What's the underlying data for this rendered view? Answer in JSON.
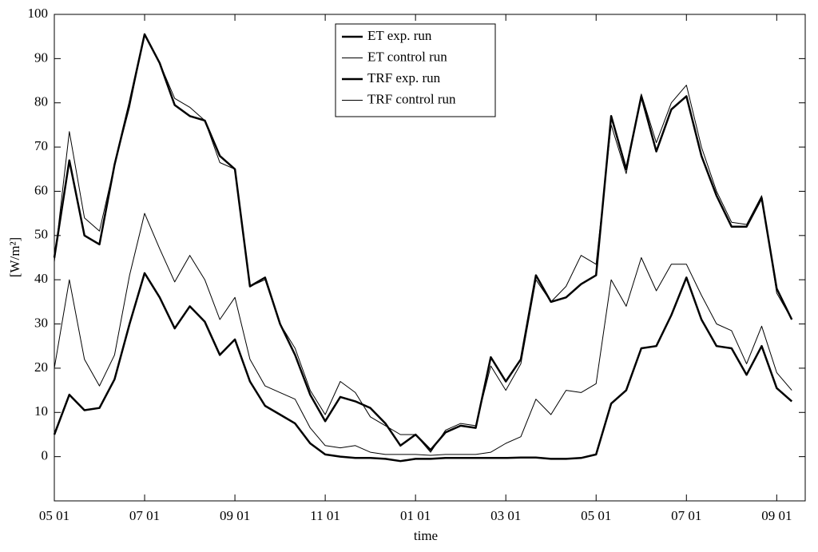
{
  "chart_data": {
    "type": "line",
    "x_label": "time",
    "y_label": "[W/m²]",
    "categories": [
      "05 01",
      null,
      null,
      null,
      null,
      null,
      "07 01",
      null,
      null,
      null,
      null,
      null,
      "09 01",
      null,
      null,
      null,
      null,
      null,
      "11 01",
      null,
      null,
      null,
      null,
      null,
      "01 01",
      null,
      null,
      null,
      null,
      null,
      "03 01",
      null,
      null,
      null,
      null,
      null,
      "05 01",
      null,
      null,
      null,
      null,
      null,
      "07 01",
      null,
      null,
      null,
      null,
      null,
      "09 01",
      null
    ],
    "series": [
      {
        "name": "ET exp. run",
        "color": "#000000",
        "linewidth": 2.5,
        "values": [
          45,
          67,
          50,
          48,
          66,
          80,
          95.5,
          89,
          79.5,
          77,
          76,
          68,
          65,
          38.5,
          40.5,
          30,
          23,
          14,
          8,
          13.5,
          12.5,
          11,
          7.5,
          2.5,
          5,
          1.5,
          5.5,
          7,
          6.5,
          22.5,
          17,
          22,
          41,
          35,
          36,
          39,
          41,
          77,
          65,
          81.5,
          69,
          78.5,
          81.5,
          68,
          59,
          52,
          52,
          58.5,
          38,
          31
        ]
      },
      {
        "name": "ET control run",
        "color": "#000000",
        "linewidth": 1,
        "values": [
          44,
          73.5,
          54,
          51,
          66,
          79,
          95.5,
          89,
          81,
          79,
          76,
          66.5,
          65,
          38.5,
          40,
          30,
          24.5,
          15,
          9.5,
          17,
          14.5,
          9,
          7,
          5,
          5,
          1,
          6,
          7.5,
          7,
          20.5,
          15,
          21,
          40,
          35,
          38.5,
          45.5,
          43.5,
          75,
          64,
          82,
          71,
          80,
          84,
          70,
          60,
          53,
          52.5,
          59,
          37,
          31
        ]
      },
      {
        "name": "TRF exp. run",
        "color": "#000000",
        "linewidth": 2.5,
        "values": [
          5,
          14,
          10.5,
          11,
          17.5,
          30,
          41.5,
          36,
          29,
          34,
          30.5,
          23,
          26.5,
          17,
          11.5,
          9.5,
          7.5,
          3,
          0.5,
          0,
          -0.3,
          -0.3,
          -0.5,
          -1,
          -0.5,
          -0.5,
          -0.3,
          -0.3,
          -0.3,
          -0.3,
          -0.3,
          -0.2,
          -0.2,
          -0.5,
          -0.5,
          -0.3,
          0.5,
          12,
          15,
          24.5,
          25,
          32,
          40.5,
          31,
          25,
          24.5,
          18.5,
          25,
          15.5,
          12.5
        ]
      },
      {
        "name": "TRF control run",
        "color": "#000000",
        "linewidth": 1,
        "values": [
          20,
          40,
          22,
          16,
          23,
          41,
          55,
          47,
          39.5,
          45.5,
          40,
          31,
          36,
          22,
          16,
          14.5,
          13,
          6.5,
          2.5,
          2,
          2.5,
          1,
          0.5,
          0.5,
          0.5,
          0.3,
          0.5,
          0.5,
          0.5,
          1,
          3,
          4.5,
          13,
          9.5,
          15,
          14.5,
          16.5,
          40,
          34,
          45,
          37.5,
          43.5,
          43.5,
          36.5,
          30,
          28.5,
          21,
          29.5,
          19,
          15
        ]
      }
    ],
    "ylim": [
      -10,
      100
    ],
    "yticks": [
      0,
      10,
      20,
      30,
      40,
      50,
      60,
      70,
      80,
      90,
      100
    ],
    "grid": false,
    "legend": "top center"
  }
}
